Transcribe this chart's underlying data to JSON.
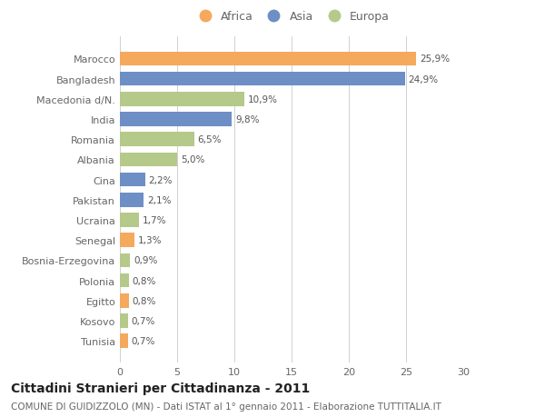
{
  "categories": [
    "Marocco",
    "Bangladesh",
    "Macedonia d/N.",
    "India",
    "Romania",
    "Albania",
    "Cina",
    "Pakistan",
    "Ucraina",
    "Senegal",
    "Bosnia-Erzegovina",
    "Polonia",
    "Egitto",
    "Kosovo",
    "Tunisia"
  ],
  "values": [
    25.9,
    24.9,
    10.9,
    9.8,
    6.5,
    5.0,
    2.2,
    2.1,
    1.7,
    1.3,
    0.9,
    0.8,
    0.8,
    0.7,
    0.7
  ],
  "labels": [
    "25,9%",
    "24,9%",
    "10,9%",
    "9,8%",
    "6,5%",
    "5,0%",
    "2,2%",
    "2,1%",
    "1,7%",
    "1,3%",
    "0,9%",
    "0,8%",
    "0,8%",
    "0,7%",
    "0,7%"
  ],
  "continents": [
    "Africa",
    "Asia",
    "Europa",
    "Asia",
    "Europa",
    "Europa",
    "Asia",
    "Asia",
    "Europa",
    "Africa",
    "Europa",
    "Europa",
    "Africa",
    "Europa",
    "Africa"
  ],
  "colors": {
    "Africa": "#F5A95C",
    "Asia": "#6E8FC5",
    "Europa": "#B5C98A"
  },
  "legend_order": [
    "Africa",
    "Asia",
    "Europa"
  ],
  "xlim": [
    0,
    30
  ],
  "xticks": [
    0,
    5,
    10,
    15,
    20,
    25,
    30
  ],
  "title": "Cittadini Stranieri per Cittadinanza - 2011",
  "subtitle": "COMUNE DI GUIDIZZOLO (MN) - Dati ISTAT al 1° gennaio 2011 - Elaborazione TUTTITALIA.IT",
  "background_color": "#ffffff",
  "bar_height": 0.7,
  "grid_color": "#d0d0d0",
  "title_fontsize": 10,
  "subtitle_fontsize": 7.5,
  "label_fontsize": 7.5,
  "tick_fontsize": 8,
  "legend_fontsize": 9
}
